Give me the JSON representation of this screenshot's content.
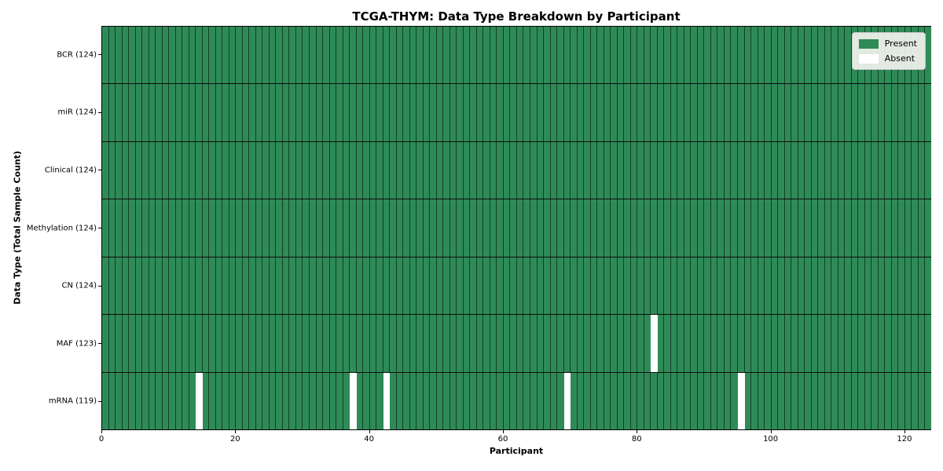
{
  "chart_data": {
    "type": "heatmap",
    "title": "TCGA-THYM: Data Type Breakdown by Participant",
    "xlabel": "Participant",
    "ylabel": "Data Type (Total Sample Count)",
    "n_participants": 124,
    "x_ticks": [
      0,
      20,
      40,
      60,
      80,
      100,
      120
    ],
    "x_range": [
      0,
      124
    ],
    "grid": true,
    "legend_position": "upper right",
    "rows": [
      {
        "label": "BCR (124)",
        "data_type": "BCR",
        "present_count": 124,
        "absent_participants": []
      },
      {
        "label": "miR (124)",
        "data_type": "miR",
        "present_count": 124,
        "absent_participants": []
      },
      {
        "label": "Clinical (124)",
        "data_type": "Clinical",
        "present_count": 124,
        "absent_participants": []
      },
      {
        "label": "Methylation (124)",
        "data_type": "Methylation",
        "present_count": 124,
        "absent_participants": []
      },
      {
        "label": "CN (124)",
        "data_type": "CN",
        "present_count": 124,
        "absent_participants": []
      },
      {
        "label": "MAF (123)",
        "data_type": "MAF",
        "present_count": 123,
        "absent_participants": [
          82
        ]
      },
      {
        "label": "mRNA (119)",
        "data_type": "mRNA",
        "present_count": 119,
        "absent_participants": [
          14,
          37,
          42,
          69,
          95
        ]
      }
    ],
    "legend": [
      {
        "label": "Present",
        "color": "#2e8b57"
      },
      {
        "label": "Absent",
        "color": "#ffffff"
      }
    ],
    "colors": {
      "present": "#2e8b57",
      "absent": "#ffffff",
      "gridline": "rgba(0,0,0,0.55)",
      "row_separator": "#0d0d0d",
      "axes_border": "#000000"
    }
  }
}
